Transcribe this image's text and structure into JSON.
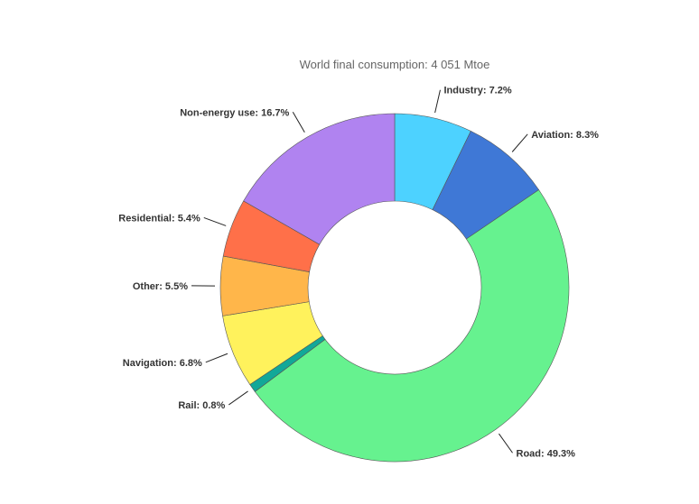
{
  "chart_data": {
    "type": "pie",
    "title": "World final consumption: 4 051 Mtoe",
    "slices": [
      {
        "name": "Industry",
        "value": 7.2,
        "label": "Industry: 7.2%",
        "color": "#4dd2ff"
      },
      {
        "name": "Aviation",
        "value": 8.3,
        "label": "Aviation: 8.3%",
        "color": "#3f78d6"
      },
      {
        "name": "Road",
        "value": 49.3,
        "label": "Road: 49.3%",
        "color": "#66f28f"
      },
      {
        "name": "Rail",
        "value": 0.8,
        "label": "Rail: 0.8%",
        "color": "#12a898"
      },
      {
        "name": "Navigation",
        "value": 6.8,
        "label": "Navigation: 6.8%",
        "color": "#fff25c"
      },
      {
        "name": "Other",
        "value": 5.5,
        "label": "Other: 5.5%",
        "color": "#ffb64a"
      },
      {
        "name": "Residential",
        "value": 5.4,
        "label": "Residential: 5.4%",
        "color": "#ff7049"
      },
      {
        "name": "Non-energy use",
        "value": 16.7,
        "label": "Non-energy use: 16.7%",
        "color": "#b083f0"
      }
    ]
  }
}
